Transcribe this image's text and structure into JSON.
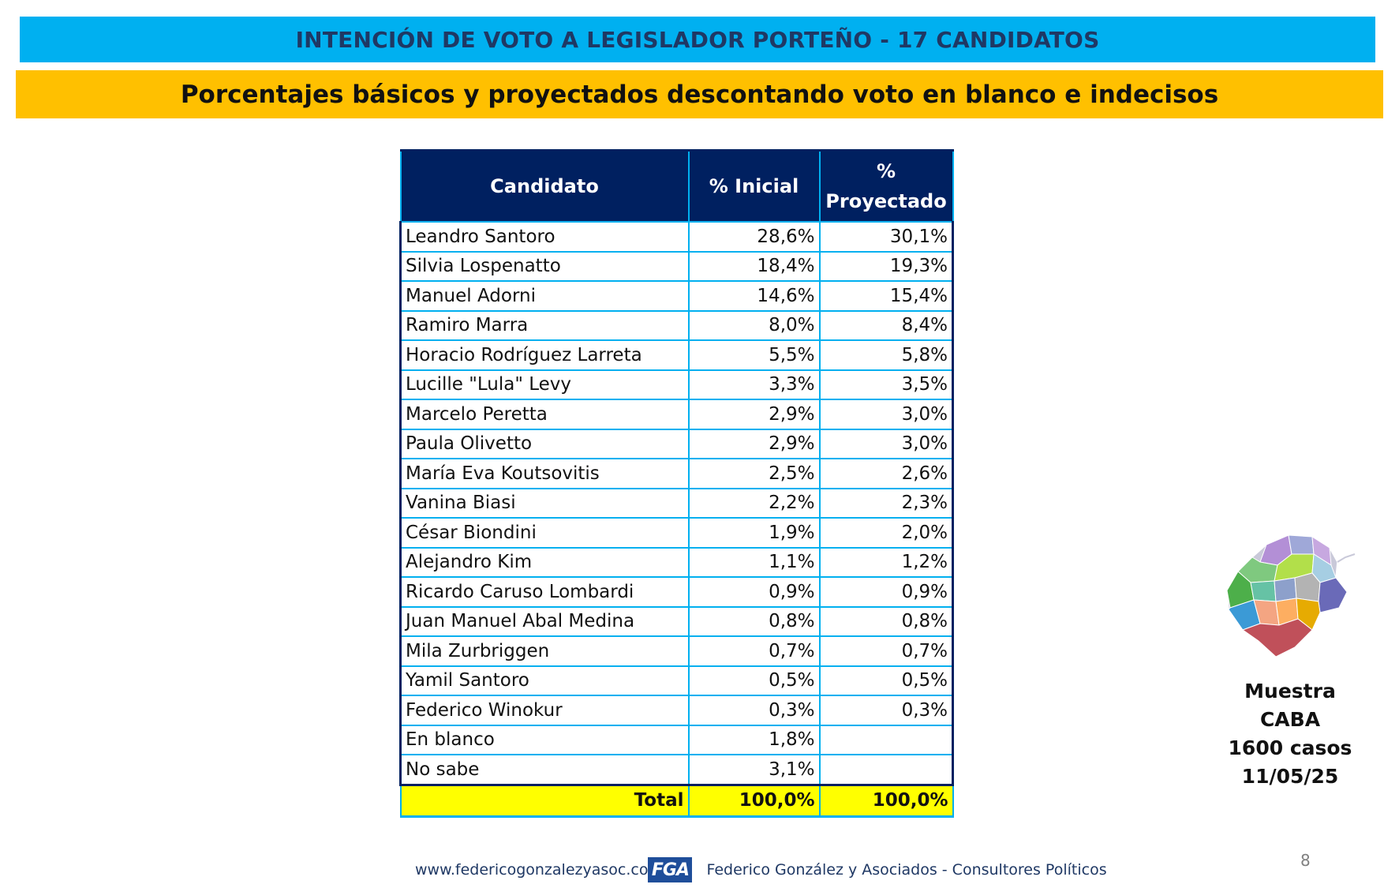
{
  "header": {
    "title": "INTENCIÓN DE VOTO A LEGISLADOR PORTEÑO - 17 CANDIDATOS",
    "subtitle": "Porcentajes básicos y proyectados descontando voto en blanco e indecisos"
  },
  "table": {
    "columns": [
      "Candidato",
      "% Inicial",
      "% Proyectado"
    ],
    "proj_header_line1": "%",
    "proj_header_line2": "Proyectado",
    "rows": [
      {
        "name": "Leandro Santoro",
        "inicial": "28,6%",
        "proyectado": "30,1%"
      },
      {
        "name": "Silvia Lospenatto",
        "inicial": "18,4%",
        "proyectado": "19,3%"
      },
      {
        "name": "Manuel Adorni",
        "inicial": "14,6%",
        "proyectado": "15,4%"
      },
      {
        "name": "Ramiro Marra",
        "inicial": "8,0%",
        "proyectado": "8,4%"
      },
      {
        "name": "Horacio Rodríguez Larreta",
        "inicial": "5,5%",
        "proyectado": "5,8%"
      },
      {
        "name": "Lucille \"Lula\" Levy",
        "inicial": "3,3%",
        "proyectado": "3,5%"
      },
      {
        "name": "Marcelo Peretta",
        "inicial": "2,9%",
        "proyectado": "3,0%"
      },
      {
        "name": "Paula Olivetto",
        "inicial": "2,9%",
        "proyectado": "3,0%"
      },
      {
        "name": "María Eva Koutsovitis",
        "inicial": "2,5%",
        "proyectado": "2,6%"
      },
      {
        "name": "Vanina Biasi",
        "inicial": "2,2%",
        "proyectado": "2,3%"
      },
      {
        "name": "César Biondini",
        "inicial": "1,9%",
        "proyectado": "2,0%"
      },
      {
        "name": "Alejandro Kim",
        "inicial": "1,1%",
        "proyectado": "1,2%"
      },
      {
        "name": "Ricardo Caruso Lombardi",
        "inicial": "0,9%",
        "proyectado": "0,9%"
      },
      {
        "name": "Juan Manuel Abal Medina",
        "inicial": "0,8%",
        "proyectado": "0,8%"
      },
      {
        "name": "Mila Zurbriggen",
        "inicial": "0,7%",
        "proyectado": "0,7%"
      },
      {
        "name": "Yamil Santoro",
        "inicial": "0,5%",
        "proyectado": "0,5%"
      },
      {
        "name": "Federico Winokur",
        "inicial": "0,3%",
        "proyectado": "0,3%"
      },
      {
        "name": "En blanco",
        "inicial": "1,8%",
        "proyectado": ""
      },
      {
        "name": "No sabe",
        "inicial": "3,1%",
        "proyectado": ""
      }
    ],
    "total": {
      "label": "Total",
      "inicial": "100,0%",
      "proyectado": "100,0%"
    }
  },
  "sample": {
    "line1": "Muestra",
    "line2": "CABA",
    "line3": "1600 casos",
    "line4": "11/05/25"
  },
  "footer": {
    "url": "www.federicogonzalezyasoc.co",
    "logo_text": "FGA",
    "firm": "Federico González y Asociados - Consultores Políticos"
  },
  "page_number": "8",
  "colors": {
    "banner_blue": "#00b0f0",
    "banner_yellow": "#ffc000",
    "header_navy": "#002060",
    "total_yellow": "#ffff00"
  }
}
